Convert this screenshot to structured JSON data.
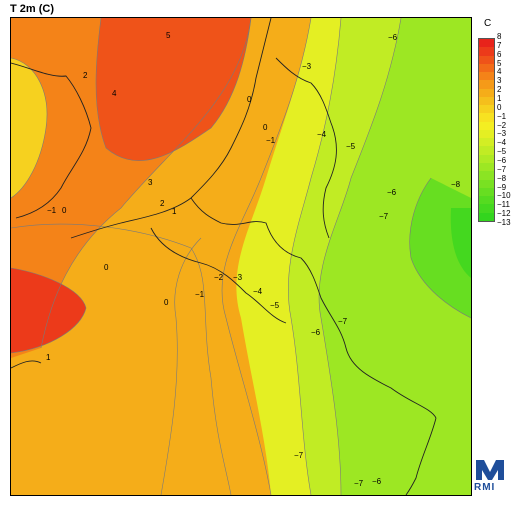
{
  "title": "T 2m (C)",
  "legend": {
    "unit": "C",
    "ticks": [
      "8",
      "7",
      "6",
      "5",
      "4",
      "3",
      "2",
      "1",
      "0",
      "−1",
      "−2",
      "−3",
      "−4",
      "−5",
      "−6",
      "−7",
      "−8",
      "−9",
      "−10",
      "−11",
      "−12",
      "−13"
    ],
    "colors": [
      "#e8231b",
      "#ec3a1a",
      "#ef5319",
      "#f26b18",
      "#f48318",
      "#f59a18",
      "#f5ad19",
      "#f5bf1c",
      "#f6d11f",
      "#f7e221",
      "#f4ee22",
      "#e4ef23",
      "#d3ee24",
      "#c1ec24",
      "#afea24",
      "#9de723",
      "#8be423",
      "#79e122",
      "#67de21",
      "#55db20",
      "#44d81f",
      "#33d51e"
    ]
  },
  "contour_labels": [
    {
      "text": "5"
    },
    {
      "text": "4"
    },
    {
      "text": "3"
    },
    {
      "text": "2"
    },
    {
      "text": "2"
    },
    {
      "text": "1"
    },
    {
      "text": "0"
    },
    {
      "text": "−1"
    },
    {
      "text": "0"
    },
    {
      "text": "0"
    },
    {
      "text": "1"
    },
    {
      "text": "−1"
    },
    {
      "text": "−2"
    },
    {
      "text": "−3"
    },
    {
      "text": "−4"
    },
    {
      "text": "−5"
    },
    {
      "text": "−6"
    },
    {
      "text": "−7"
    },
    {
      "text": "−4"
    },
    {
      "text": "−5"
    },
    {
      "text": "−6"
    },
    {
      "text": "−7"
    },
    {
      "text": "−8"
    },
    {
      "text": "−6"
    },
    {
      "text": "−7"
    },
    {
      "text": "−7"
    },
    {
      "text": "−6"
    },
    {
      "text": "−3"
    },
    {
      "text": "0"
    },
    {
      "text": "0"
    },
    {
      "text": "−1"
    }
  ],
  "logo": {
    "text": "RMI",
    "icon": "rmi-logo-icon"
  }
}
